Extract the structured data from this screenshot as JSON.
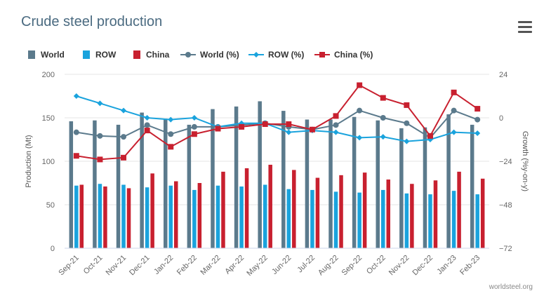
{
  "page": {
    "title": "Crude steel production",
    "credits": "worldsteel.org",
    "menu_icon": "hamburger-menu-icon"
  },
  "chart_data": {
    "type": "bar",
    "title": "Crude steel production",
    "categories": [
      "Sep-21",
      "Oct-21",
      "Nov-21",
      "Dec-21",
      "Jan-22",
      "Feb-22",
      "Mar-22",
      "Apr-22",
      "May-22",
      "Jun-22",
      "Jul-22",
      "Aug-22",
      "Sep-22",
      "Oct-22",
      "Nov-22",
      "Dec-22",
      "Jan-23",
      "Feb-23"
    ],
    "y_left": {
      "label": "Production (Mt)",
      "ylim": [
        0,
        200
      ],
      "ticks": [
        "0",
        "50",
        "100",
        "150",
        "200"
      ]
    },
    "y_right": {
      "label": "Growth (%y-on-y)",
      "ylim": [
        -72,
        24
      ],
      "ticks": [
        "24",
        "0",
        "−24",
        "−48",
        "−72"
      ]
    },
    "series": [
      {
        "name": "World",
        "type": "bar",
        "axis": "left",
        "color": "#5b7a8c",
        "values": [
          146,
          147,
          142,
          156,
          149,
          142,
          160,
          163,
          169,
          158,
          148,
          148,
          151,
          147,
          138,
          139,
          154,
          142
        ]
      },
      {
        "name": "ROW",
        "type": "bar",
        "axis": "left",
        "color": "#1aa3dd",
        "values": [
          72,
          74,
          73,
          70,
          72,
          67,
          72,
          71,
          73,
          68,
          67,
          65,
          64,
          67,
          63,
          62,
          66,
          62
        ]
      },
      {
        "name": "China",
        "type": "bar",
        "axis": "left",
        "color": "#c8202f",
        "values": [
          73,
          71,
          69,
          86,
          77,
          75,
          88,
          92,
          96,
          90,
          81,
          84,
          87,
          79,
          74,
          78,
          88,
          80
        ]
      },
      {
        "name": "World (%)",
        "type": "line",
        "axis": "right",
        "color": "#5b7a8c",
        "values": [
          -8,
          -10,
          -10.5,
          -4,
          -9,
          -5,
          -5,
          -4,
          -3,
          -5,
          -6.5,
          -4,
          4,
          0,
          -3,
          -11,
          4,
          -1
        ]
      },
      {
        "name": "ROW (%)",
        "type": "line",
        "axis": "right",
        "color": "#1aa3dd",
        "values": [
          12,
          8,
          4,
          0,
          -1,
          0,
          -5,
          -3,
          -3,
          -8,
          -7,
          -8,
          -11,
          -10.5,
          -13,
          -12,
          -8,
          -8.5
        ]
      },
      {
        "name": "China (%)",
        "type": "line",
        "axis": "right",
        "color": "#c8202f",
        "values": [
          -21,
          -23,
          -22,
          -7,
          -16,
          -9,
          -6,
          -5,
          -3.5,
          -3.5,
          -6.5,
          1,
          18,
          11,
          7,
          -10,
          14,
          5
        ]
      }
    ],
    "grid": true,
    "legend_position": "top-left"
  }
}
